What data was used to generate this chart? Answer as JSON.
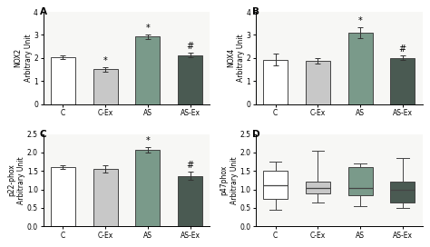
{
  "panels": [
    "A",
    "B",
    "C",
    "D"
  ],
  "categories": [
    "C",
    "C-Ex",
    "AS",
    "AS-Ex"
  ],
  "bar_colors": [
    "#ffffff",
    "#c8c8c8",
    "#7a9a8a",
    "#4a5a52"
  ],
  "bar_edgecolor": "#444444",
  "background_color": "#ffffff",
  "axes_bg": "#f7f7f5",
  "A": {
    "ylabel": "NOX2\nArbitrary Unit",
    "values": [
      2.05,
      1.5,
      2.92,
      2.12
    ],
    "errors": [
      0.08,
      0.08,
      0.1,
      0.1
    ],
    "ylim": [
      0,
      4
    ],
    "yticks": [
      0,
      1,
      2,
      3,
      4
    ],
    "sig": [
      "",
      "*",
      "*",
      "#"
    ]
  },
  "B": {
    "ylabel": "NOX4\nArbitrary Unit",
    "values": [
      1.93,
      1.88,
      3.1,
      2.0
    ],
    "errors": [
      0.25,
      0.12,
      0.25,
      0.1
    ],
    "ylim": [
      0,
      4
    ],
    "yticks": [
      0,
      1,
      2,
      3,
      4
    ],
    "sig": [
      "",
      "",
      "*",
      "#"
    ]
  },
  "C": {
    "ylabel": "p22-phox\nArbitrary Unit",
    "values": [
      1.6,
      1.55,
      2.08,
      1.37
    ],
    "errors": [
      0.05,
      0.1,
      0.07,
      0.1
    ],
    "ylim": [
      0,
      2.5
    ],
    "yticks": [
      0.0,
      0.5,
      1.0,
      1.5,
      2.0,
      2.5
    ],
    "sig": [
      "",
      "",
      "*",
      "#"
    ]
  },
  "D": {
    "ylabel": "p47phox\nArbitrary Unit",
    "box_data": {
      "C": {
        "median": 1.1,
        "q1": 0.75,
        "q3": 1.5,
        "whislo": 0.45,
        "whishi": 1.75
      },
      "C-Ex": {
        "median": 1.05,
        "q1": 0.9,
        "q3": 1.2,
        "whislo": 0.65,
        "whishi": 2.05
      },
      "AS": {
        "median": 1.05,
        "q1": 0.85,
        "q3": 1.6,
        "whislo": 0.55,
        "whishi": 1.7
      },
      "AS-Ex": {
        "median": 1.0,
        "q1": 0.65,
        "q3": 1.2,
        "whislo": 0.5,
        "whishi": 1.85
      }
    },
    "ylim": [
      0,
      2.5
    ],
    "yticks": [
      0.0,
      0.5,
      1.0,
      1.5,
      2.0,
      2.5
    ]
  },
  "fontsize_label": 5.5,
  "fontsize_tick": 5.5,
  "fontsize_panel": 7.5,
  "fontsize_sig": 7
}
